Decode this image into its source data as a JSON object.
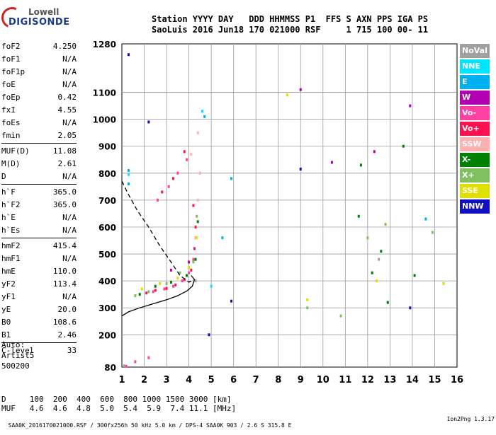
{
  "logo": {
    "line1": "Lowell",
    "line2": "DIGISONDE"
  },
  "header": {
    "line1": "Station YYYY DAY   DDD HHMMSS P1  FFS S AXN PPS IGA PS",
    "line2": "SaoLuis 2016 Jun18 170 021000 RSF     1 715 100 00- 11"
  },
  "params": [
    {
      "label": "foF2",
      "value": "4.250"
    },
    {
      "label": "foF1",
      "value": "N/A"
    },
    {
      "label": "foF1p",
      "value": "N/A"
    },
    {
      "label": "foE",
      "value": "N/A"
    },
    {
      "label": "foEp",
      "value": "0.42"
    },
    {
      "label": "fxI",
      "value": "4.55"
    },
    {
      "label": "foEs",
      "value": "N/A"
    },
    {
      "label": "fmin",
      "value": "2.05"
    },
    {
      "label": "MUF(D)",
      "value": "11.08"
    },
    {
      "label": "M(D)",
      "value": "2.61"
    },
    {
      "label": "D",
      "value": "N/A"
    },
    {
      "label": "h`F",
      "value": "365.0"
    },
    {
      "label": "h`F2",
      "value": "365.0"
    },
    {
      "label": "h`E",
      "value": "N/A"
    },
    {
      "label": "h`Es",
      "value": "N/A"
    },
    {
      "label": "hmF2",
      "value": "415.4"
    },
    {
      "label": "hmF1",
      "value": "N/A"
    },
    {
      "label": "hmE",
      "value": "110.0"
    },
    {
      "label": "yF2",
      "value": "113.4"
    },
    {
      "label": "yF1",
      "value": "N/A"
    },
    {
      "label": "yE",
      "value": "20.0"
    },
    {
      "label": "B0",
      "value": "108.6"
    },
    {
      "label": "B1",
      "value": "2.46"
    },
    {
      "label": "C-level",
      "value": "33"
    }
  ],
  "auto": {
    "line1": "Auto:",
    "line2": "Artist5",
    "line3": "500200"
  },
  "muf_table": {
    "d_row": "D     100  200  400  600  800 1000 1500 3000 [km]",
    "muf_row": "MUF   4.6  4.6  4.8  5.0  5.4  5.9  7.4 11.1 [MHz]"
  },
  "footer": {
    "left": "SAA0K_2016170021000.RSF / 300fx256h 50 kHz 5.0 km / DPS-4 SAA0K 903 / 2.6 S 315.8 E",
    "right": "Ion2Png 1.3.17"
  },
  "legend": [
    {
      "label": "NoVal",
      "color": "#a0a0a0"
    },
    {
      "label": "NNE",
      "color": "#00e5ff"
    },
    {
      "label": "E",
      "color": "#00b0f0"
    },
    {
      "label": "W",
      "color": "#b000b0"
    },
    {
      "label": "Vo-",
      "color": "#ff40a0"
    },
    {
      "label": "Vo+",
      "color": "#ff1050"
    },
    {
      "label": "SSW",
      "color": "#ffb0b0"
    },
    {
      "label": "X-",
      "color": "#008000"
    },
    {
      "label": "X+",
      "color": "#80c060"
    },
    {
      "label": "SSE",
      "color": "#e0e000"
    },
    {
      "label": "NNW",
      "color": "#1010c0"
    }
  ],
  "chart_data": {
    "type": "scatter",
    "title": "",
    "xlabel": "",
    "ylabel": "",
    "xlim": [
      1,
      16
    ],
    "ylim": [
      80,
      1280
    ],
    "x_ticks": [
      1,
      2,
      3,
      4,
      5,
      6,
      7,
      8,
      9,
      10,
      11,
      12,
      13,
      14,
      15,
      16
    ],
    "y_ticks": [
      80,
      200,
      300,
      400,
      500,
      600,
      700,
      800,
      900,
      1000,
      1100,
      1280
    ],
    "grid": true,
    "series": [
      {
        "name": "Vo-",
        "color": "#ff40a0",
        "values": [
          [
            1.2,
            83
          ],
          [
            1.6,
            100
          ],
          [
            2.2,
            115
          ],
          [
            2.4,
            360
          ],
          [
            2.9,
            370
          ],
          [
            3.3,
            380
          ],
          [
            3.7,
            400
          ],
          [
            4.0,
            430
          ],
          [
            4.2,
            480
          ],
          [
            4.3,
            560
          ],
          [
            2.6,
            700
          ],
          [
            3.1,
            750
          ],
          [
            3.5,
            800
          ],
          [
            3.9,
            850
          ]
        ]
      },
      {
        "name": "Vo+",
        "color": "#ff1050",
        "values": [
          [
            2.1,
            355
          ],
          [
            2.5,
            365
          ],
          [
            3.0,
            372
          ],
          [
            3.4,
            385
          ],
          [
            3.8,
            405
          ],
          [
            4.1,
            440
          ],
          [
            4.25,
            520
          ],
          [
            4.3,
            600
          ],
          [
            4.2,
            680
          ],
          [
            2.8,
            730
          ],
          [
            3.3,
            780
          ],
          [
            3.8,
            880
          ]
        ]
      },
      {
        "name": "SSW",
        "color": "#ffb0b0",
        "values": [
          [
            4.3,
            560
          ],
          [
            4.4,
            700
          ],
          [
            4.1,
            870
          ],
          [
            4.4,
            950
          ],
          [
            4.5,
            800
          ]
        ]
      },
      {
        "name": "X-",
        "color": "#008000",
        "values": [
          [
            1.8,
            350
          ],
          [
            2.5,
            380
          ],
          [
            3.2,
            395
          ],
          [
            3.9,
            420
          ],
          [
            4.3,
            480
          ],
          [
            4.4,
            620
          ],
          [
            11.6,
            640
          ],
          [
            11.7,
            830
          ],
          [
            12.2,
            430
          ],
          [
            12.6,
            510
          ],
          [
            12.9,
            320
          ],
          [
            13.6,
            900
          ],
          [
            14.1,
            420
          ]
        ]
      },
      {
        "name": "X+",
        "color": "#80c060",
        "values": [
          [
            1.6,
            345
          ],
          [
            2.2,
            360
          ],
          [
            3.0,
            390
          ],
          [
            3.6,
            430
          ],
          [
            4.2,
            470
          ],
          [
            4.35,
            640
          ],
          [
            9.3,
            300
          ],
          [
            10.8,
            270
          ],
          [
            12.0,
            560
          ],
          [
            12.8,
            610
          ],
          [
            14.9,
            580
          ]
        ]
      },
      {
        "name": "SSE",
        "color": "#e0e000",
        "values": [
          [
            1.9,
            370
          ],
          [
            2.7,
            390
          ],
          [
            3.5,
            410
          ],
          [
            4.0,
            450
          ],
          [
            4.35,
            560
          ],
          [
            8.4,
            1090
          ],
          [
            9.3,
            330
          ],
          [
            12.4,
            400
          ],
          [
            15.4,
            390
          ]
        ]
      },
      {
        "name": "W",
        "color": "#b000b0",
        "values": [
          [
            3.2,
            440
          ],
          [
            4.0,
            470
          ],
          [
            9.0,
            1110
          ],
          [
            10.4,
            840
          ],
          [
            12.3,
            880
          ],
          [
            13.9,
            1050
          ]
        ]
      },
      {
        "name": "E",
        "color": "#00b0f0",
        "values": [
          [
            1.3,
            810
          ],
          [
            1.3,
            760
          ],
          [
            4.7,
            1010
          ],
          [
            5.5,
            560
          ],
          [
            5.9,
            780
          ],
          [
            14.6,
            630
          ]
        ]
      },
      {
        "name": "NNE",
        "color": "#00e5ff",
        "values": [
          [
            1.3,
            795
          ],
          [
            4.6,
            1030
          ],
          [
            5.0,
            380
          ]
        ]
      },
      {
        "name": "NNW",
        "color": "#1010c0",
        "values": [
          [
            1.3,
            1240
          ],
          [
            2.2,
            990
          ],
          [
            4.9,
            200
          ],
          [
            5.9,
            325
          ],
          [
            9.0,
            815
          ],
          [
            13.9,
            300
          ]
        ]
      },
      {
        "name": "NoVal",
        "color": "#a0a0a0",
        "values": [
          [
            1.1,
            85
          ],
          [
            4.3,
            400
          ],
          [
            12.5,
            480
          ]
        ]
      }
    ],
    "lines": [
      {
        "style": "solid",
        "points": [
          [
            1.0,
            270
          ],
          [
            1.3,
            285
          ],
          [
            1.8,
            300
          ],
          [
            2.4,
            315
          ],
          [
            3.0,
            330
          ],
          [
            3.5,
            345
          ],
          [
            3.9,
            362
          ],
          [
            4.15,
            380
          ],
          [
            4.25,
            405
          ],
          [
            4.1,
            420
          ]
        ]
      },
      {
        "style": "dashed",
        "points": [
          [
            1.0,
            770
          ],
          [
            1.3,
            720
          ],
          [
            1.7,
            660
          ],
          [
            2.2,
            600
          ],
          [
            2.7,
            530
          ],
          [
            3.2,
            470
          ],
          [
            3.6,
            420
          ],
          [
            4.0,
            395
          ],
          [
            4.25,
            405
          ]
        ]
      }
    ]
  }
}
